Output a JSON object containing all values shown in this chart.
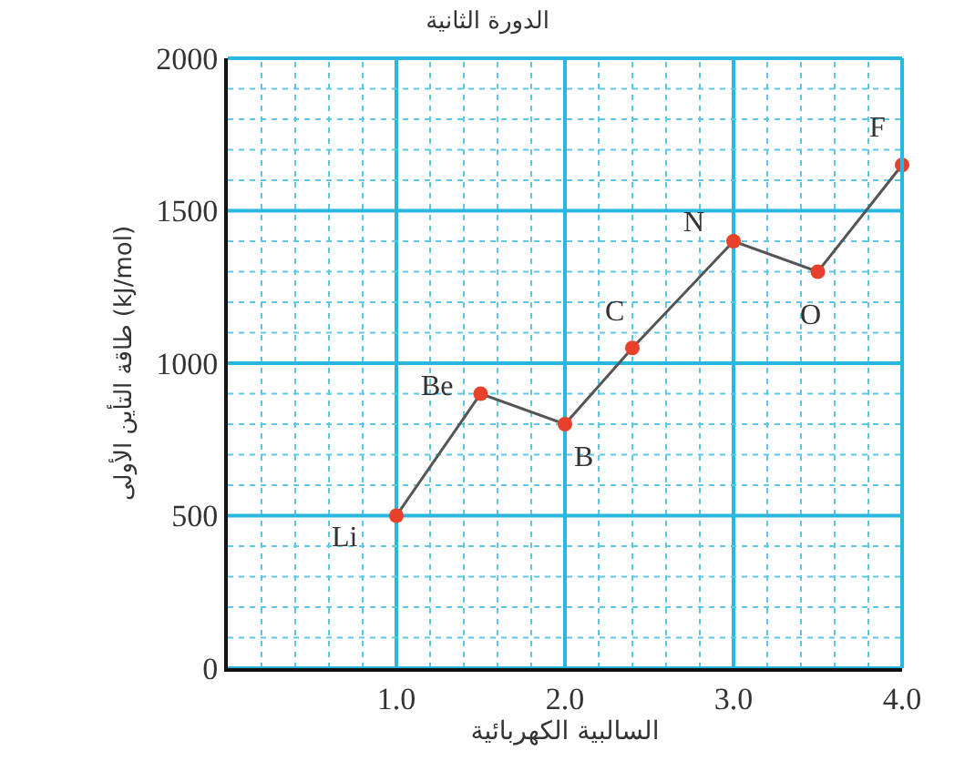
{
  "chart_data": {
    "type": "line",
    "title": "الدورة الثانية",
    "xlabel": "السالبية الكهربائية",
    "ylabel": "طاقة التأين الأولى (kJ/mol)",
    "x": [
      1.0,
      1.5,
      2.0,
      2.4,
      3.0,
      3.5,
      4.0
    ],
    "series": [
      {
        "color": "#e8402a",
        "values": [
          500,
          900,
          800,
          1050,
          1400,
          1300,
          1650
        ]
      }
    ],
    "xlim": [
      0,
      4
    ],
    "xticks": [
      {
        "value": 0.2,
        "label": null
      },
      {
        "value": 0.4,
        "label": null
      },
      {
        "value": 0.6,
        "label": null
      },
      {
        "value": 0.8,
        "label": null
      },
      {
        "value": 1,
        "label": "1.0"
      },
      {
        "value": 1.2,
        "label": null
      },
      {
        "value": 1.4,
        "label": null
      },
      {
        "value": 1.6,
        "label": null
      },
      {
        "value": 1.8,
        "label": null
      },
      {
        "value": 2,
        "label": "2.0"
      },
      {
        "value": 2.2,
        "label": null
      },
      {
        "value": 2.4,
        "label": null
      },
      {
        "value": 2.6,
        "label": null
      },
      {
        "value": 2.8,
        "label": null
      },
      {
        "value": 3,
        "label": "3.0"
      },
      {
        "value": 3.2,
        "label": null
      },
      {
        "value": 3.4,
        "label": null
      },
      {
        "value": 3.6,
        "label": null
      },
      {
        "value": 3.8,
        "label": null
      },
      {
        "value": 4,
        "label": "4.0"
      }
    ],
    "ylim": [
      0,
      2000
    ],
    "yticks": [
      0,
      {
        "value": 100,
        "label": null
      },
      {
        "value": 200,
        "label": null
      },
      {
        "value": 300,
        "label": null
      },
      {
        "value": 400,
        "label": null
      },
      500,
      {
        "value": 600,
        "label": null
      },
      {
        "value": 700,
        "label": null
      },
      {
        "value": 800,
        "label": null
      },
      {
        "value": 900,
        "label": null
      },
      1000,
      {
        "value": 1100,
        "label": null
      },
      {
        "value": 1200,
        "label": null
      },
      {
        "value": 1300,
        "label": null
      },
      {
        "value": 1400,
        "label": null
      },
      1500,
      {
        "value": 1600,
        "label": null
      },
      {
        "value": 1700,
        "label": null
      },
      {
        "value": 1800,
        "label": null
      },
      {
        "value": 1900,
        "label": null
      },
      2000
    ],
    "grid": true,
    "marker": "circle",
    "line_style": "solid",
    "legend": false,
    "annotations": [
      {
        "text": "Li",
        "x": 1.0,
        "y": 500
      },
      {
        "text": "Be",
        "x": 1.5,
        "y": 900
      },
      {
        "text": "B",
        "x": 2.0,
        "y": 800
      },
      {
        "text": "C",
        "x": 2.4,
        "y": 1050
      },
      {
        "text": "N",
        "x": 3.0,
        "y": 1400
      },
      {
        "text": "O",
        "x": 3.5,
        "y": 1300
      },
      {
        "text": "F",
        "x": 4.0,
        "y": 1650
      }
    ]
  }
}
